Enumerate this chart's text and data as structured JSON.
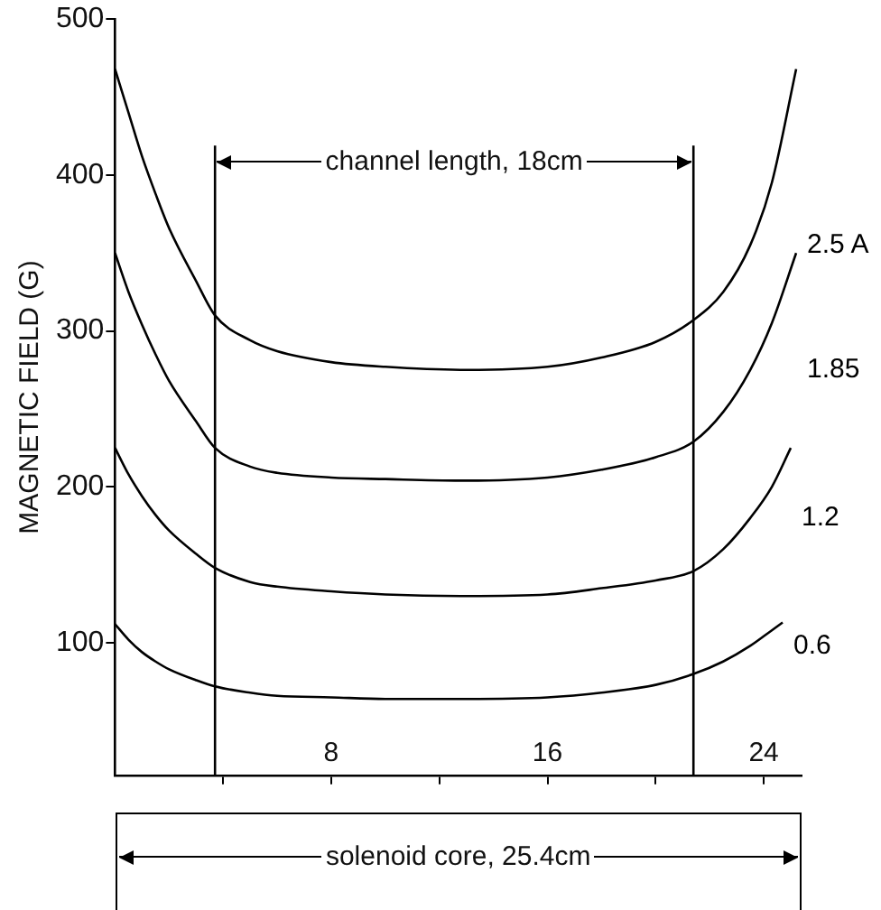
{
  "chart_data": {
    "type": "line",
    "ylabel": "MAGNETIC FIELD (G)",
    "xlim": [
      0,
      25.4
    ],
    "xticks": [
      {
        "value": 4,
        "label": null
      },
      8,
      {
        "value": 12,
        "label": null
      },
      16,
      {
        "value": 20,
        "label": null
      },
      24
    ],
    "ylim": [
      15,
      500
    ],
    "yticks": [
      100,
      200,
      300,
      400,
      500
    ],
    "marker": "none",
    "line_style": "solid",
    "series": [
      {
        "name": "2.5 A",
        "color": "#000000",
        "x": [
          0,
          0.5,
          1,
          1.5,
          2,
          3,
          3.7,
          5,
          6,
          8,
          10,
          13,
          16,
          18,
          20,
          21.4,
          22.5,
          23.5,
          24.3,
          25.2
        ],
        "values": [
          468,
          440,
          412,
          388,
          366,
          332,
          310,
          294,
          287,
          280,
          277,
          275,
          277,
          283,
          293,
          307,
          325,
          355,
          395,
          468
        ]
      },
      {
        "name": "1.85",
        "color": "#000000",
        "x": [
          0,
          0.5,
          1,
          1.5,
          2,
          3,
          3.7,
          5,
          6,
          8,
          10,
          13,
          16,
          18,
          20,
          21.4,
          22.5,
          23.5,
          24.3,
          25.2
        ],
        "values": [
          350,
          325,
          304,
          285,
          268,
          242,
          225,
          213,
          209,
          206,
          205,
          204,
          206,
          211,
          219,
          229,
          248,
          275,
          305,
          350
        ]
      },
      {
        "name": "1.2",
        "color": "#000000",
        "x": [
          0,
          0.5,
          1,
          1.5,
          2,
          3,
          3.7,
          5,
          6,
          8,
          10,
          13,
          16,
          18,
          20,
          21.4,
          22.5,
          23.5,
          24.3,
          25
        ],
        "values": [
          225,
          208,
          194,
          182,
          172,
          157,
          148,
          139,
          136,
          133,
          131,
          130,
          131,
          135,
          140,
          146,
          160,
          180,
          200,
          225
        ]
      },
      {
        "name": "0.6",
        "color": "#000000",
        "x": [
          0,
          0.5,
          1,
          1.5,
          2,
          3,
          3.7,
          5,
          6,
          8,
          10,
          13,
          16,
          18,
          20,
          21.4,
          22.5,
          23.5,
          24.3,
          24.7
        ],
        "values": [
          112,
          102,
          94,
          88,
          83,
          76,
          72,
          68,
          66,
          65,
          64,
          64,
          65,
          68,
          73,
          80,
          88,
          98,
          108,
          113
        ]
      }
    ],
    "ref_lines": [
      {
        "axis": "x",
        "value": 3.7,
        "color": "#000000"
      },
      {
        "axis": "x",
        "value": 21.4,
        "color": "#000000"
      }
    ],
    "annotations": [
      "channel length, 18cm",
      "solenoid core, 25.4cm"
    ]
  }
}
